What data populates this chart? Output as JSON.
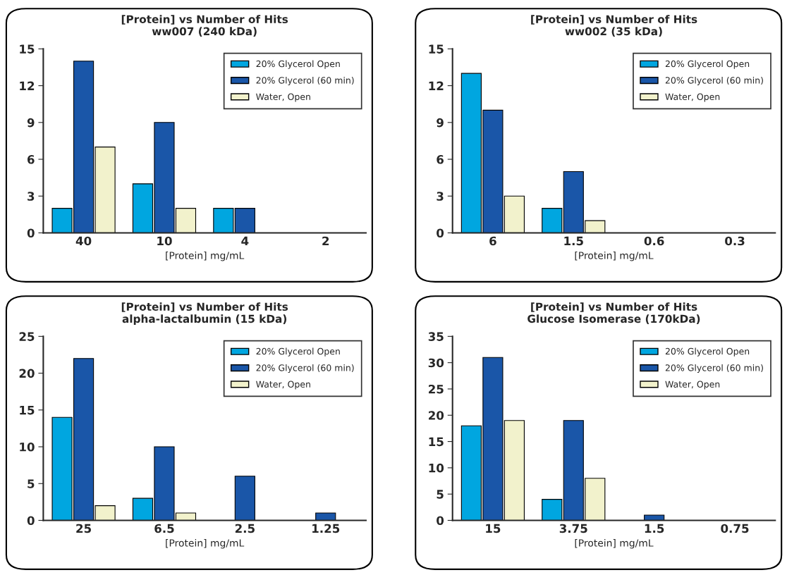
{
  "chart_data": [
    {
      "type": "bar",
      "title": "[Protein] vs Number of Hits",
      "subtitle": "ww007 (240 kDa)",
      "xlabel": "[Protein] mg/mL",
      "categories": [
        "40",
        "10",
        "4",
        "2"
      ],
      "ylim": [
        0,
        15
      ],
      "yticks": [
        0,
        3,
        6,
        9,
        12,
        15
      ],
      "legend": "top right",
      "grid": false,
      "series": [
        {
          "name": "20% Glycerol Open",
          "color": "#00a6e0",
          "values": [
            2,
            4,
            2,
            0
          ]
        },
        {
          "name": "20% Glycerol (60 min)",
          "color": "#1a56a8",
          "values": [
            14,
            9,
            2,
            0
          ]
        },
        {
          "name": "Water, Open",
          "color": "#f2f2cc",
          "values": [
            7,
            2,
            0,
            0
          ]
        }
      ]
    },
    {
      "type": "bar",
      "title": "[Protein] vs Number of Hits",
      "subtitle": "ww002 (35 kDa)",
      "xlabel": "[Protein] mg/mL",
      "categories": [
        "6",
        "1.5",
        "0.6",
        "0.3"
      ],
      "ylim": [
        0,
        15
      ],
      "yticks": [
        0,
        3,
        6,
        9,
        12,
        15
      ],
      "legend": "top right",
      "grid": false,
      "series": [
        {
          "name": "20% Glycerol Open",
          "color": "#00a6e0",
          "values": [
            13,
            2,
            0,
            0
          ]
        },
        {
          "name": "20% Glycerol (60 min)",
          "color": "#1a56a8",
          "values": [
            10,
            5,
            0,
            0
          ]
        },
        {
          "name": "Water, Open",
          "color": "#f2f2cc",
          "values": [
            3,
            1,
            0,
            0
          ]
        }
      ]
    },
    {
      "type": "bar",
      "title": "[Protein] vs Number of Hits",
      "subtitle": "alpha-lactalbumin (15 kDa)",
      "xlabel": "[Protein] mg/mL",
      "categories": [
        "25",
        "6.5",
        "2.5",
        "1.25"
      ],
      "ylim": [
        0,
        25
      ],
      "yticks": [
        0,
        5,
        10,
        15,
        20,
        25
      ],
      "legend": "top right",
      "grid": false,
      "series": [
        {
          "name": "20% Glycerol Open",
          "color": "#00a6e0",
          "values": [
            14,
            3,
            0,
            0
          ]
        },
        {
          "name": "20% Glycerol (60 min)",
          "color": "#1a56a8",
          "values": [
            22,
            10,
            6,
            1
          ]
        },
        {
          "name": "Water, Open",
          "color": "#f2f2cc",
          "values": [
            2,
            1,
            0,
            0
          ]
        }
      ]
    },
    {
      "type": "bar",
      "title": "[Protein] vs Number of Hits",
      "subtitle": "Glucose Isomerase (170kDa)",
      "xlabel": "[Protein] mg/mL",
      "categories": [
        "15",
        "3.75",
        "1.5",
        "0.75"
      ],
      "ylim": [
        0,
        35
      ],
      "yticks": [
        0,
        5,
        10,
        15,
        20,
        25,
        30,
        35
      ],
      "legend": "top right",
      "grid": false,
      "series": [
        {
          "name": "20% Glycerol Open",
          "color": "#00a6e0",
          "values": [
            18,
            4,
            0,
            0
          ]
        },
        {
          "name": "20% Glycerol (60 min)",
          "color": "#1a56a8",
          "values": [
            31,
            19,
            1,
            0
          ]
        },
        {
          "name": "Water, Open",
          "color": "#f2f2cc",
          "values": [
            19,
            8,
            0,
            0
          ]
        }
      ]
    }
  ]
}
